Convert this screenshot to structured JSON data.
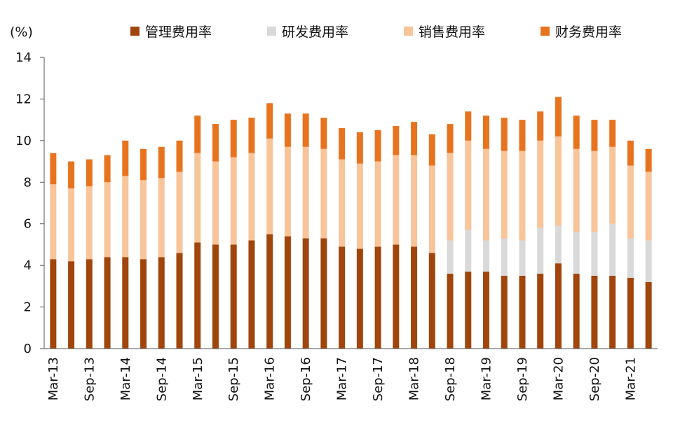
{
  "chart_data": {
    "type": "bar",
    "stacked": true,
    "unit_label": "(%)",
    "title": "",
    "xlabel": "",
    "ylabel": "",
    "ylim": [
      0,
      14
    ],
    "yticks": [
      "0",
      "2",
      "4",
      "6",
      "8",
      "10",
      "12",
      "14"
    ],
    "ytick_values": [
      0,
      2,
      4,
      6,
      8,
      10,
      12,
      14
    ],
    "legend_position": "top",
    "grid": false,
    "categories": [
      "Mar-13",
      "Jun-13",
      "Sep-13",
      "Dec-13",
      "Mar-14",
      "Jun-14",
      "Sep-14",
      "Dec-14",
      "Mar-15",
      "Jun-15",
      "Sep-15",
      "Dec-15",
      "Mar-16",
      "Jun-16",
      "Sep-16",
      "Dec-16",
      "Mar-17",
      "Jun-17",
      "Sep-17",
      "Dec-17",
      "Mar-18",
      "Jun-18",
      "Sep-18",
      "Dec-18",
      "Mar-19",
      "Jun-19",
      "Sep-19",
      "Dec-19",
      "Mar-20",
      "Jun-20",
      "Sep-20",
      "Dec-20",
      "Mar-21",
      "Jun-21"
    ],
    "xtick_labels": [
      "Mar-13",
      "Sep-13",
      "Mar-14",
      "Sep-14",
      "Mar-15",
      "Sep-15",
      "Mar-16",
      "Sep-16",
      "Mar-17",
      "Sep-17",
      "Mar-18",
      "Sep-18",
      "Mar-19",
      "Sep-19",
      "Mar-20",
      "Sep-20",
      "Mar-21"
    ],
    "series": [
      {
        "name": "管理费用率",
        "color": "#A0450B",
        "values": [
          4.3,
          4.2,
          4.3,
          4.4,
          4.4,
          4.3,
          4.4,
          4.6,
          5.1,
          5.0,
          5.0,
          5.2,
          5.5,
          5.4,
          5.3,
          5.3,
          4.9,
          4.8,
          4.9,
          5.0,
          4.9,
          4.6,
          3.6,
          3.7,
          3.7,
          3.5,
          3.5,
          3.6,
          4.1,
          3.6,
          3.5,
          3.5,
          3.4,
          3.2
        ]
      },
      {
        "name": "研发费用率",
        "color": "#D9D9D9",
        "values": [
          0,
          0,
          0,
          0,
          0,
          0,
          0,
          0,
          0,
          0,
          0,
          0,
          0,
          0,
          0,
          0,
          0,
          0,
          0,
          0,
          0,
          0,
          1.6,
          2.0,
          1.5,
          1.8,
          1.7,
          2.2,
          1.8,
          2.0,
          2.1,
          2.5,
          1.9,
          2.0
        ]
      },
      {
        "name": "销售费用率",
        "color": "#F8C49A",
        "values": [
          3.6,
          3.5,
          3.5,
          3.6,
          3.9,
          3.8,
          3.8,
          3.9,
          4.3,
          4.0,
          4.2,
          4.2,
          4.6,
          4.3,
          4.4,
          4.3,
          4.2,
          4.1,
          4.1,
          4.3,
          4.4,
          4.2,
          4.2,
          4.3,
          4.4,
          4.2,
          4.3,
          4.2,
          4.3,
          4.0,
          3.9,
          3.7,
          3.5,
          3.3
        ]
      },
      {
        "name": "财务费用率",
        "color": "#E8731E",
        "values": [
          1.5,
          1.3,
          1.3,
          1.3,
          1.7,
          1.5,
          1.5,
          1.5,
          1.8,
          1.8,
          1.8,
          1.7,
          1.7,
          1.6,
          1.6,
          1.5,
          1.5,
          1.5,
          1.5,
          1.4,
          1.6,
          1.5,
          1.4,
          1.4,
          1.6,
          1.6,
          1.5,
          1.4,
          1.9,
          1.6,
          1.5,
          1.3,
          1.2,
          1.1
        ]
      }
    ]
  }
}
